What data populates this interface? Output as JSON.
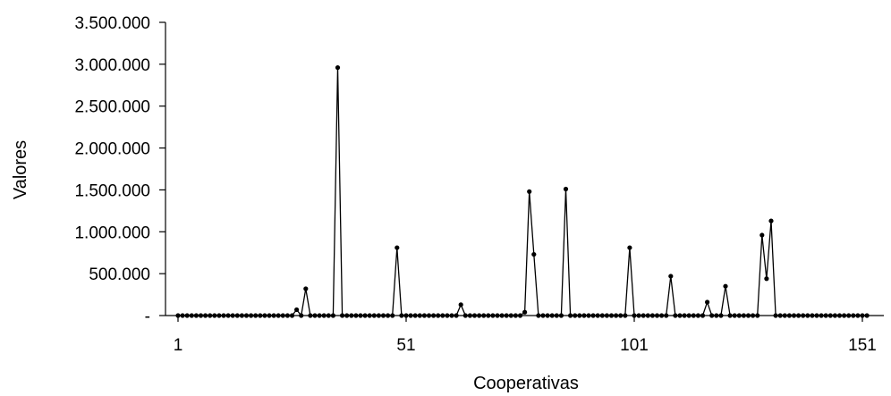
{
  "chart_data": {
    "type": "line",
    "xlabel": "Cooperativas",
    "ylabel": "Valores",
    "x_ticks": [
      "1",
      "51",
      "101",
      "151"
    ],
    "y_ticks": [
      {
        "value": 0,
        "label": "-"
      },
      {
        "value": 500000,
        "label": "500.000"
      },
      {
        "value": 1000000,
        "label": "1.000.000"
      },
      {
        "value": 1500000,
        "label": "1.500.000"
      },
      {
        "value": 2000000,
        "label": "2.000.000"
      },
      {
        "value": 2500000,
        "label": "2.500.000"
      },
      {
        "value": 3000000,
        "label": "3.000.000"
      },
      {
        "value": 3500000,
        "label": "3.500.000"
      }
    ],
    "xlim": [
      1,
      152
    ],
    "ylim": [
      0,
      3500000
    ],
    "grid": false,
    "legend": "none",
    "marker": "filled-circle",
    "color": "#000000",
    "series": [
      {
        "x_start": 1,
        "values": [
          0,
          0,
          0,
          0,
          0,
          0,
          0,
          0,
          0,
          0,
          0,
          0,
          0,
          0,
          0,
          0,
          0,
          0,
          0,
          0,
          0,
          0,
          0,
          0,
          0,
          0,
          70000,
          0,
          320000,
          0,
          0,
          0,
          0,
          0,
          0,
          2960000,
          0,
          0,
          0,
          0,
          0,
          0,
          0,
          0,
          0,
          0,
          0,
          0,
          810000,
          0,
          0,
          0,
          0,
          0,
          0,
          0,
          0,
          0,
          0,
          0,
          0,
          0,
          130000,
          0,
          0,
          0,
          0,
          0,
          0,
          0,
          0,
          0,
          0,
          0,
          0,
          0,
          40000,
          1480000,
          730000,
          0,
          0,
          0,
          0,
          0,
          0,
          1510000,
          0,
          0,
          0,
          0,
          0,
          0,
          0,
          0,
          0,
          0,
          0,
          0,
          0,
          810000,
          0,
          0,
          0,
          0,
          0,
          0,
          0,
          0,
          470000,
          0,
          0,
          0,
          0,
          0,
          0,
          0,
          160000,
          0,
          0,
          0,
          350000,
          0,
          0,
          0,
          0,
          0,
          0,
          0,
          960000,
          440000,
          1130000,
          0,
          0,
          0,
          0,
          0,
          0,
          0,
          0,
          0,
          0,
          0,
          0,
          0,
          0,
          0,
          0,
          0,
          0,
          0,
          0,
          0
        ]
      }
    ]
  }
}
